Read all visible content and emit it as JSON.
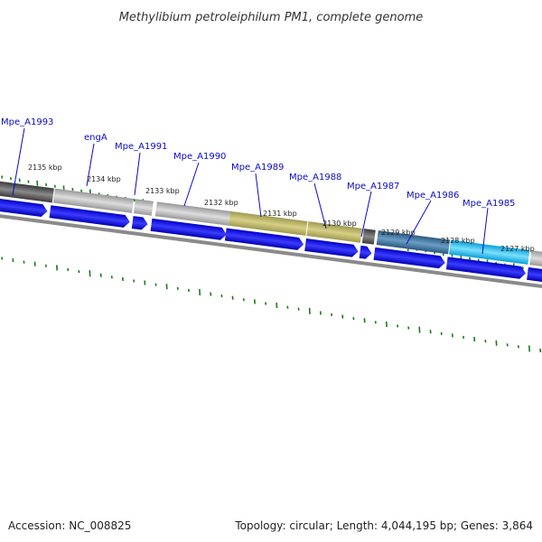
{
  "title": "Methylibium petroleiphilum PM1, complete genome",
  "footer": {
    "accession": "Accession: NC_008825",
    "summary": "Topology: circular; Length: 4,044,195 bp; Genes: 3,864"
  },
  "genes": [
    {
      "id": "g-a1993",
      "label": "Mpe_A1993"
    },
    {
      "id": "g-enga",
      "label": "engA"
    },
    {
      "id": "g-a1991",
      "label": "Mpe_A1991"
    },
    {
      "id": "g-a1990",
      "label": "Mpe_A1990"
    },
    {
      "id": "g-a1989",
      "label": "Mpe_A1989"
    },
    {
      "id": "g-a1988",
      "label": "Mpe_A1988"
    },
    {
      "id": "g-a1987",
      "label": "Mpe_A1987"
    },
    {
      "id": "g-a1986",
      "label": "Mpe_A1986"
    },
    {
      "id": "g-a1985",
      "label": "Mpe_A1985"
    }
  ],
  "kbp_ticks": [
    "2135 kbp",
    "2134 kbp",
    "2133 kbp",
    "2132 kbp",
    "2131 kbp",
    "2130 kbp",
    "2129 kbp",
    "2128 kbp",
    "2127 kbp"
  ],
  "colors": {
    "cds_arrow": "#0a0af0",
    "backbone": "#808080",
    "gc_skew": "#1a7a1a",
    "gene_label": "#0a0ac8"
  }
}
